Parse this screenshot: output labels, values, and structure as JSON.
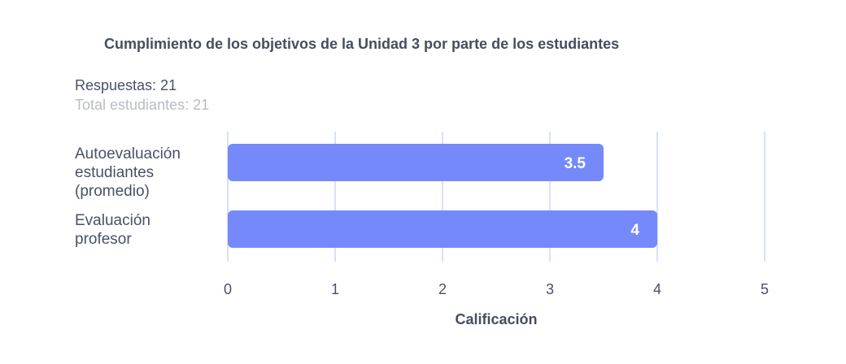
{
  "chart_data": {
    "type": "bar",
    "orientation": "horizontal",
    "title": "Cumplimiento de los objetivos de la Unidad 3 por parte de los estudiantes",
    "subtitle_lines": [
      "Respuestas: 21",
      "Total estudiantes: 21"
    ],
    "categories": [
      "Autoevaluación\nestudiantes\n(promedio)",
      "Evaluación\nprofesor"
    ],
    "values": [
      3.5,
      4
    ],
    "data_labels": [
      "3.5",
      "4"
    ],
    "xlabel": "Calificación",
    "ylabel": "",
    "xlim": [
      0,
      5
    ],
    "ticks": [
      0,
      1,
      2,
      3,
      4,
      5
    ],
    "tick_labels": [
      "0",
      "1",
      "2",
      "3",
      "4",
      "5"
    ],
    "grid": true,
    "legend": "none",
    "colors": {
      "bar": "#7589fb",
      "grid": "#b3c1f0",
      "text": "#4a5166",
      "muted_text": "#b9bcc4"
    }
  }
}
